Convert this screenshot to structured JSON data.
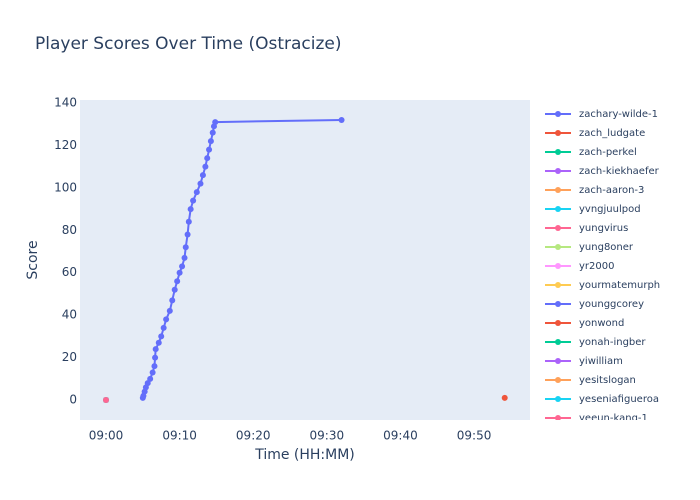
{
  "chart_data": {
    "type": "line",
    "title": "Player Scores Over Time (Ostracize)",
    "x_label": "Time (HH:MM)",
    "y_label": "Score",
    "xlim": [
      "08:56:28",
      "09:57:36"
    ],
    "ylim": [
      -9.4,
      141.4
    ],
    "xticks": [
      "09:00",
      "09:10",
      "09:20",
      "09:30",
      "09:40",
      "09:50"
    ],
    "yticks": [
      0,
      20,
      40,
      60,
      80,
      100,
      120,
      140
    ],
    "grid": true,
    "legend": "right",
    "series": [
      {
        "name": "zachary-wilde-1",
        "color": "#636efa",
        "x": [
          "09:05:00",
          "09:05:05",
          "09:05:15",
          "09:05:25",
          "09:05:40",
          "09:06:00",
          "09:06:20",
          "09:06:35",
          "09:06:40",
          "09:06:45",
          "09:07:10",
          "09:07:30",
          "09:07:50",
          "09:08:10",
          "09:08:40",
          "09:09:00",
          "09:09:20",
          "09:09:40",
          "09:10:00",
          "09:10:20",
          "09:10:40",
          "09:10:50",
          "09:11:05",
          "09:11:15",
          "09:11:30",
          "09:11:50",
          "09:12:20",
          "09:12:50",
          "09:13:10",
          "09:13:30",
          "09:13:45",
          "09:14:00",
          "09:14:15",
          "09:14:30",
          "09:14:40",
          "09:14:50",
          "09:32:00"
        ],
        "values": [
          1,
          2,
          4,
          6,
          8,
          10,
          13,
          16,
          20,
          24,
          27,
          30,
          34,
          38,
          42,
          47,
          52,
          56,
          60,
          63,
          67,
          72,
          78,
          84,
          90,
          94,
          98,
          102,
          106,
          110,
          114,
          118,
          122,
          126,
          129,
          131,
          132
        ]
      },
      {
        "name": "zach_ludgate",
        "color": "#EF553B",
        "x": [
          "09:00:00"
        ],
        "values": [
          0
        ]
      },
      {
        "name": "zach-perkel",
        "color": "#00cc96",
        "x": [
          "09:00:00"
        ],
        "values": [
          0
        ]
      },
      {
        "name": "zach-kiekhaefer",
        "color": "#ab63fa",
        "x": [
          "09:00:00"
        ],
        "values": [
          0
        ]
      },
      {
        "name": "zach-aaron-3",
        "color": "#FFA15A",
        "x": [
          "09:00:00"
        ],
        "values": [
          0
        ]
      },
      {
        "name": "yvngjuulpod",
        "color": "#19d3f3",
        "x": [
          "09:00:00"
        ],
        "values": [
          0
        ]
      },
      {
        "name": "yungvirus",
        "color": "#FF6692",
        "x": [
          "09:00:00"
        ],
        "values": [
          0
        ]
      },
      {
        "name": "yung8oner",
        "color": "#B6E880",
        "x": [
          "09:00:00"
        ],
        "values": [
          0
        ]
      },
      {
        "name": "yr2000",
        "color": "#FF97FF",
        "x": [
          "09:00:00"
        ],
        "values": [
          0
        ]
      },
      {
        "name": "yourmatemurph",
        "color": "#FECB52",
        "x": [
          "09:00:00"
        ],
        "values": [
          0
        ]
      },
      {
        "name": "younggcorey",
        "color": "#636efa",
        "x": [
          "09:00:00"
        ],
        "values": [
          0
        ]
      },
      {
        "name": "yonwond",
        "color": "#EF553B",
        "x": [
          "09:54:10"
        ],
        "values": [
          1
        ]
      },
      {
        "name": "yonah-ingber",
        "color": "#00cc96",
        "x": [
          "09:00:00"
        ],
        "values": [
          0
        ]
      },
      {
        "name": "yiwilliam",
        "color": "#ab63fa",
        "x": [
          "09:00:00"
        ],
        "values": [
          0
        ]
      },
      {
        "name": "yesitslogan",
        "color": "#FFA15A",
        "x": [
          "09:00:00"
        ],
        "values": [
          0
        ]
      },
      {
        "name": "yeseniafigueroa",
        "color": "#19d3f3",
        "x": [
          "09:00:00"
        ],
        "values": [
          0
        ]
      },
      {
        "name": "yeeun-kang-1",
        "color": "#FF6692",
        "x": [
          "09:00:00"
        ],
        "values": [
          0
        ]
      }
    ]
  }
}
